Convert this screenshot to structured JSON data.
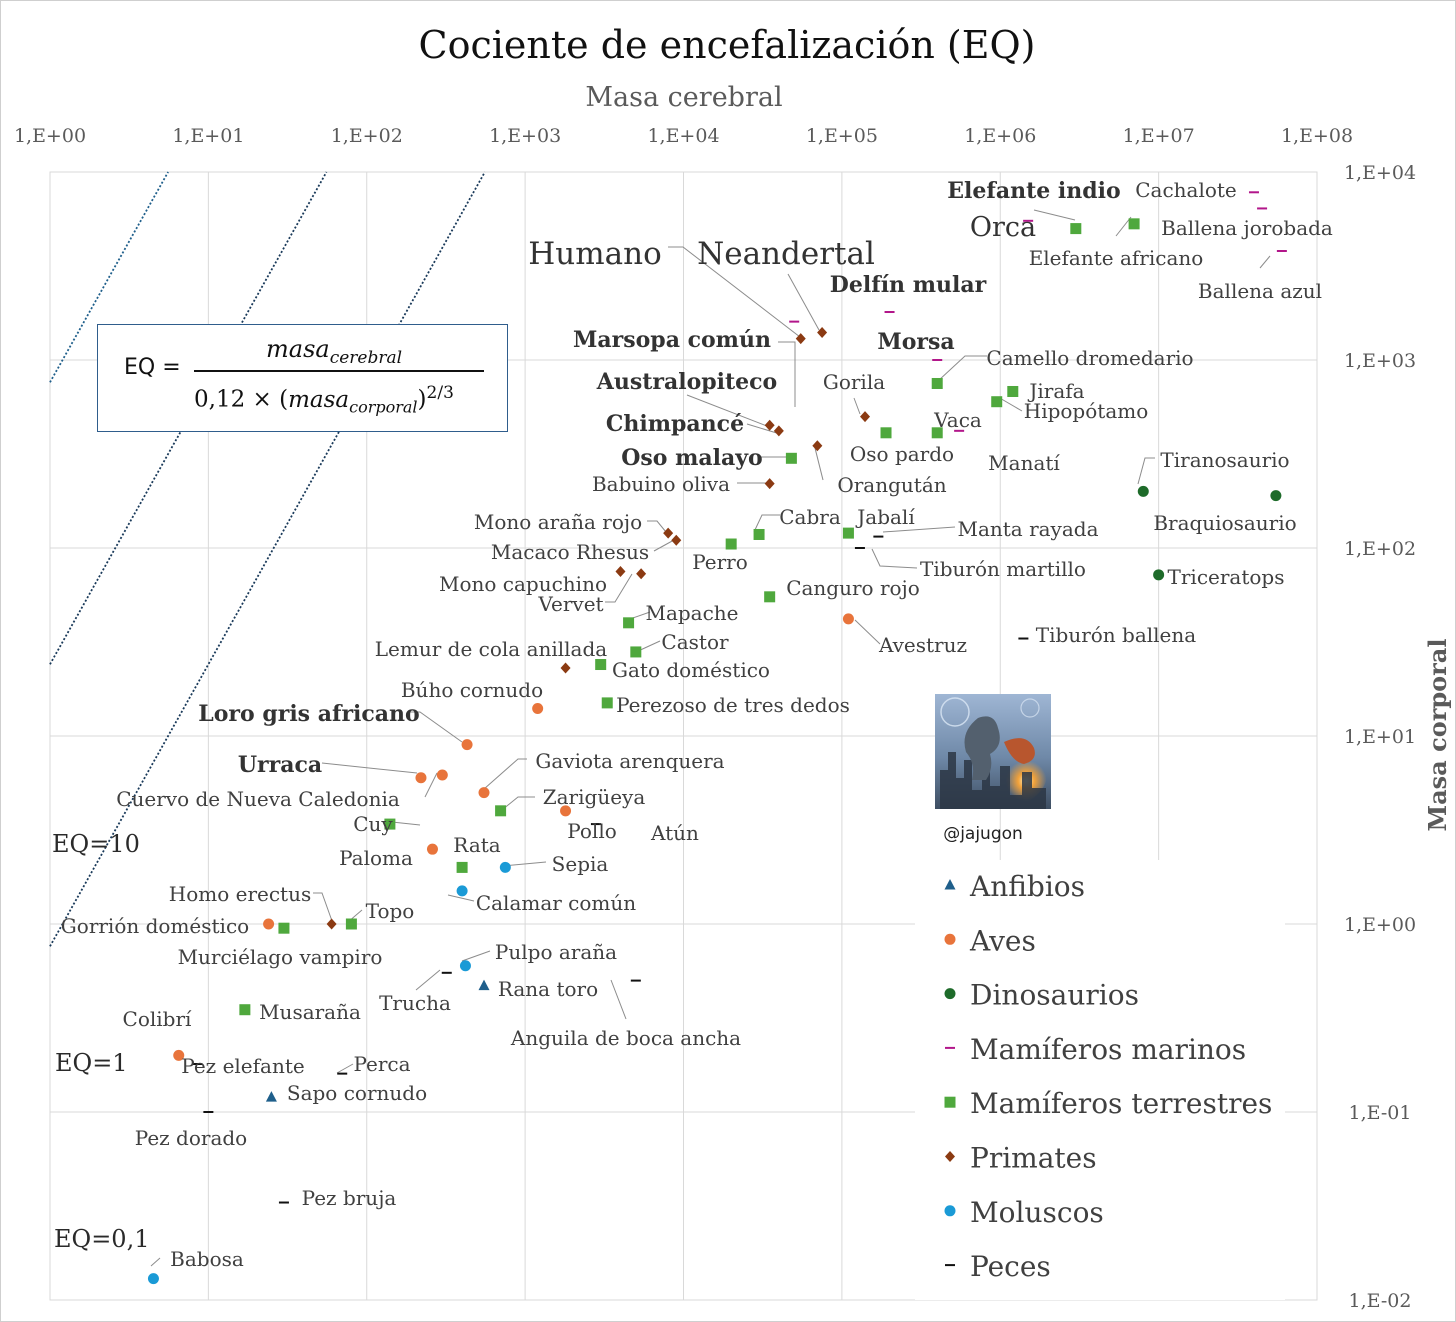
{
  "chart_data": {
    "type": "scatter",
    "title": "Cociente de encefalización (EQ)",
    "xlabel": "Masa cerebral",
    "ylabel": "Masa corporal",
    "x_scale": "log",
    "y_scale": "log",
    "xlim": [
      1,
      100000000
    ],
    "ylim": [
      0.01,
      10000
    ],
    "x_ticks": [
      "1,E+00",
      "1,E+01",
      "1,E+02",
      "1,E+03",
      "1,E+04",
      "1,E+05",
      "1,E+06",
      "1,E+07",
      "1,E+08"
    ],
    "y_ticks": [
      "1,E+04",
      "1,E+03",
      "1,E+02",
      "1,E+01",
      "1,E+00",
      "1,E-01",
      "1,E-02"
    ],
    "grid": true,
    "legend_position": "bottom-right",
    "formula": {
      "lhs": "EQ =",
      "numerator": "masa",
      "numerator_sub": "cerebral",
      "denominator_pre": "0,12 × (",
      "denominator_var": "masa",
      "denominator_sub": "corporal",
      "denominator_post": ")",
      "exponent": "2/3"
    },
    "reference_lines": [
      {
        "label": "EQ=10",
        "eq": 10
      },
      {
        "label": "EQ=1",
        "eq": 1
      },
      {
        "label": "EQ=0,1",
        "eq": 0.1
      }
    ],
    "credit": "@jajugon",
    "series": [
      {
        "name": "Anfibios",
        "color": "#1f5f8b",
        "marker": "triangle",
        "points": [
          {
            "label": "Rana toro",
            "x": 550,
            "y": 0.47
          },
          {
            "label": "Sapo cornudo",
            "x": 25,
            "y": 0.12
          }
        ]
      },
      {
        "name": "Aves",
        "color": "#e8743b",
        "marker": "circle",
        "points": [
          {
            "label": "Loro gris africano",
            "x": 430,
            "y": 9
          },
          {
            "label": "Urraca",
            "x": 220,
            "y": 6
          },
          {
            "label": "Cuervo de Nueva Caledonia",
            "x": 300,
            "y": 6.2
          },
          {
            "label": "Búho cornudo",
            "x": 1200,
            "y": 14
          },
          {
            "label": "Gaviota arenquera",
            "x": 550,
            "y": 5
          },
          {
            "label": "Pollo",
            "x": 1800,
            "y": 4
          },
          {
            "label": "Paloma",
            "x": 260,
            "y": 2.5
          },
          {
            "label": "Gorrión doméstico",
            "x": 24,
            "y": 1
          },
          {
            "label": "Colibrí",
            "x": 6.5,
            "y": 0.2
          },
          {
            "label": "Avestruz",
            "x": 110000,
            "y": 42
          }
        ]
      },
      {
        "name": "Dinosaurios",
        "color": "#1e6b2a",
        "marker": "circle",
        "points": [
          {
            "label": "Tiranosaurio",
            "x": 8000000,
            "y": 200
          },
          {
            "label": "Braquiosaurio",
            "x": 55000000,
            "y": 190
          },
          {
            "label": "Triceratops",
            "x": 10000000,
            "y": 72
          }
        ]
      },
      {
        "name": "Mamíferos marinos",
        "color": "#b2168a",
        "marker": "dash",
        "points": [
          {
            "label": "Orca",
            "x": 1500000,
            "y": 5500
          },
          {
            "label": "Cachalote",
            "x": 40000000,
            "y": 7800
          },
          {
            "label": "Ballena jorobada",
            "x": 45000000,
            "y": 6400
          },
          {
            "label": "Ballena azul",
            "x": 60000000,
            "y": 3800
          },
          {
            "label": "Delfín mular",
            "x": 200000,
            "y": 1800
          },
          {
            "label": "Morsa",
            "x": 400000,
            "y": 1000
          },
          {
            "label": "Marsopa común",
            "x": 50000,
            "y": 1600
          },
          {
            "label": "Manatí",
            "x": 550000,
            "y": 420
          }
        ]
      },
      {
        "name": "Mamíferos terrestres",
        "color": "#4fa83d",
        "marker": "square",
        "points": [
          {
            "label": "Elefante indio",
            "x": 3000000,
            "y": 5000
          },
          {
            "label": "Elefante africano",
            "x": 7000000,
            "y": 5300
          },
          {
            "label": "Camello dromedario",
            "x": 400000,
            "y": 750
          },
          {
            "label": "Jirafa",
            "x": 1200000,
            "y": 680
          },
          {
            "label": "Hipopótamo",
            "x": 950000,
            "y": 600
          },
          {
            "label": "Vaca",
            "x": 400000,
            "y": 410
          },
          {
            "label": "Oso pardo",
            "x": 190000,
            "y": 410
          },
          {
            "label": "Oso malayo",
            "x": 48000,
            "y": 300
          },
          {
            "label": "Cabra",
            "x": 30000,
            "y": 118
          },
          {
            "label": "Perro",
            "x": 20000,
            "y": 105
          },
          {
            "label": "Jabalí",
            "x": 110000,
            "y": 120
          },
          {
            "label": "Canguro rojo",
            "x": 35000,
            "y": 55
          },
          {
            "label": "Mapache",
            "x": 4500,
            "y": 40
          },
          {
            "label": "Castor",
            "x": 5000,
            "y": 28
          },
          {
            "label": "Gato doméstico",
            "x": 3000,
            "y": 24
          },
          {
            "label": "Perezoso de tres dedos",
            "x": 3300,
            "y": 15
          },
          {
            "label": "Zarigüeya",
            "x": 700,
            "y": 4
          },
          {
            "label": "Cuy",
            "x": 140,
            "y": 3.4
          },
          {
            "label": "Rata",
            "x": 400,
            "y": 2
          },
          {
            "label": "Topo",
            "x": 80,
            "y": 1
          },
          {
            "label": "Murciélago vampiro",
            "x": 30,
            "y": 0.95
          },
          {
            "label": "Musaraña",
            "x": 17,
            "y": 0.35
          }
        ]
      },
      {
        "name": "Primates",
        "color": "#8b3a12",
        "marker": "diamond",
        "points": [
          {
            "label": "Humano",
            "x": 55000,
            "y": 1300
          },
          {
            "label": "Neandertal",
            "x": 75000,
            "y": 1400
          },
          {
            "label": "Australopiteco",
            "x": 35000,
            "y": 450
          },
          {
            "label": "Chimpancé",
            "x": 40000,
            "y": 420
          },
          {
            "label": "Gorila",
            "x": 140000,
            "y": 500
          },
          {
            "label": "Orangután",
            "x": 70000,
            "y": 350
          },
          {
            "label": "Babuino oliva",
            "x": 35000,
            "y": 220
          },
          {
            "label": "Mono araña rojo",
            "x": 8000,
            "y": 120
          },
          {
            "label": "Macaco Rhesus",
            "x": 9000,
            "y": 110
          },
          {
            "label": "Mono capuchino",
            "x": 5400,
            "y": 73
          },
          {
            "label": "Vervet",
            "x": 4000,
            "y": 75
          },
          {
            "label": "Lemur de cola anillada",
            "x": 1800,
            "y": 23
          },
          {
            "label": "Homo erectus",
            "x": 60,
            "y": 1
          }
        ]
      },
      {
        "name": "Moluscos",
        "color": "#1a9ad6",
        "marker": "circle",
        "points": [
          {
            "label": "Sepia",
            "x": 750,
            "y": 2
          },
          {
            "label": "Calamar común",
            "x": 400,
            "y": 1.5
          },
          {
            "label": "Pulpo araña",
            "x": 420,
            "y": 0.6
          },
          {
            "label": "Babosa",
            "x": 4.5,
            "y": 0.013
          }
        ]
      },
      {
        "name": "Peces",
        "color": "#111111",
        "marker": "dash",
        "points": [
          {
            "label": "Manta rayada",
            "x": 170000,
            "y": 115
          },
          {
            "label": "Tiburón martillo",
            "x": 130000,
            "y": 100
          },
          {
            "label": "Tiburón ballena",
            "x": 1400000,
            "y": 33
          },
          {
            "label": "Atún",
            "x": 2800,
            "y": 3.4
          },
          {
            "label": "Trucha",
            "x": 320,
            "y": 0.55
          },
          {
            "label": "Anguila de boca ancha",
            "x": 5000,
            "y": 0.5
          },
          {
            "label": "Pez elefante",
            "x": 8.5,
            "y": 0.18
          },
          {
            "label": "Perca",
            "x": 70,
            "y": 0.16
          },
          {
            "label": "Pez dorado",
            "x": 10,
            "y": 0.1
          },
          {
            "label": "Pez bruja",
            "x": 30,
            "y": 0.033
          }
        ]
      }
    ]
  }
}
